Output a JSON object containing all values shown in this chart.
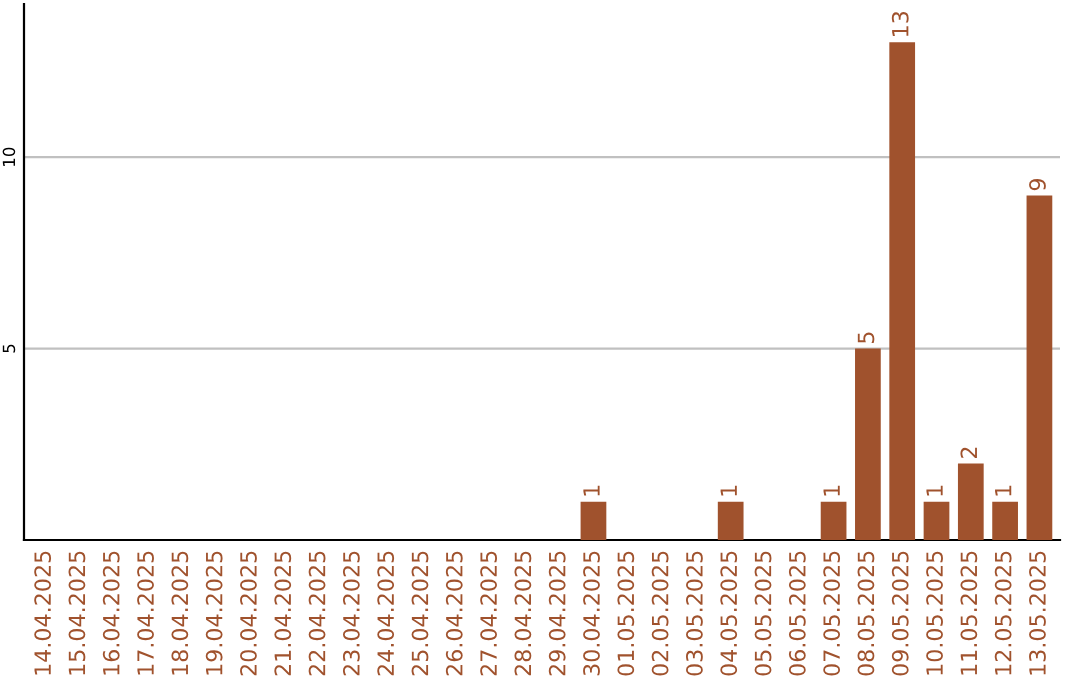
{
  "chart_data": {
    "type": "bar",
    "categories": [
      "14.04.2025",
      "15.04.2025",
      "16.04.2025",
      "17.04.2025",
      "18.04.2025",
      "19.04.2025",
      "20.04.2025",
      "21.04.2025",
      "22.04.2025",
      "23.04.2025",
      "24.04.2025",
      "25.04.2025",
      "26.04.2025",
      "27.04.2025",
      "28.04.2025",
      "29.04.2025",
      "30.04.2025",
      "01.05.2025",
      "02.05.2025",
      "03.05.2025",
      "04.05.2025",
      "05.05.2025",
      "06.05.2025",
      "07.05.2025",
      "08.05.2025",
      "09.05.2025",
      "10.05.2025",
      "11.05.2025",
      "12.05.2025",
      "13.05.2025"
    ],
    "values": [
      0,
      0,
      0,
      0,
      0,
      0,
      0,
      0,
      0,
      0,
      0,
      0,
      0,
      0,
      0,
      0,
      1,
      0,
      0,
      0,
      1,
      0,
      0,
      1,
      5,
      13,
      1,
      2,
      1,
      9
    ],
    "value_labels": [
      null,
      null,
      null,
      null,
      null,
      null,
      null,
      null,
      null,
      null,
      null,
      null,
      null,
      null,
      null,
      null,
      "1",
      null,
      null,
      null,
      "1",
      null,
      null,
      "1",
      "5",
      "13",
      "1",
      "2",
      "1",
      "9"
    ],
    "color": "#a0522d",
    "ylim": [
      0,
      14
    ],
    "yticks": [
      5,
      10
    ],
    "grid": "y",
    "legend": false
  }
}
